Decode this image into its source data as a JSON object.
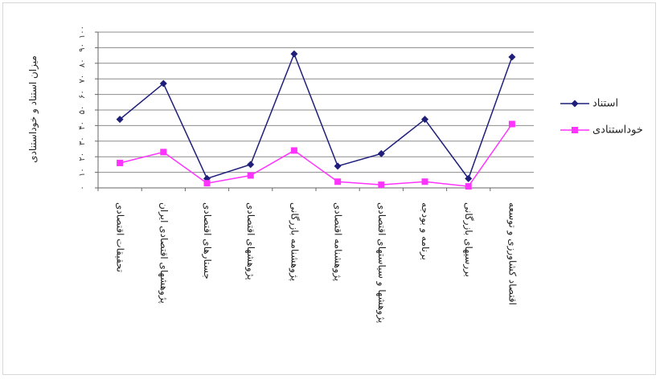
{
  "chart_data": {
    "type": "line",
    "ylabel": "میزان استناد و خوداستنادی",
    "ylim": [
      0,
      100
    ],
    "yticks": [
      "۰",
      "۱۰",
      "۲۰",
      "۳۰",
      "۴۰",
      "۵۰",
      "۶۰",
      "۷۰",
      "۸۰",
      "۹۰",
      "۱۰۰"
    ],
    "categories": [
      "تحقیقات اقتصادی",
      "پژوهشهای اقتصادی ایران",
      "جستارهای اقتصادی",
      "پژوهشهای اقتصادی",
      "پژوهشنامه بازرگانی",
      "پژوهشنامه اقتصادی",
      "پژوهشها و سیاستهای اقتصادی",
      "برنامه و بودجه",
      "بررسیهای بازرگانی",
      "اقتصاد کشاورزی و توسعه"
    ],
    "series": [
      {
        "name": "استناد",
        "color": "#1f1f7a",
        "marker": "diamond",
        "values": [
          44,
          67,
          6,
          15,
          86,
          14,
          22,
          44,
          6,
          84
        ]
      },
      {
        "name": "خوداستنادی",
        "color": "#ff33ff",
        "marker": "square",
        "values": [
          16,
          23,
          3,
          8,
          24,
          4,
          2,
          4,
          1,
          41
        ]
      }
    ],
    "grid": true,
    "legend": "right"
  }
}
